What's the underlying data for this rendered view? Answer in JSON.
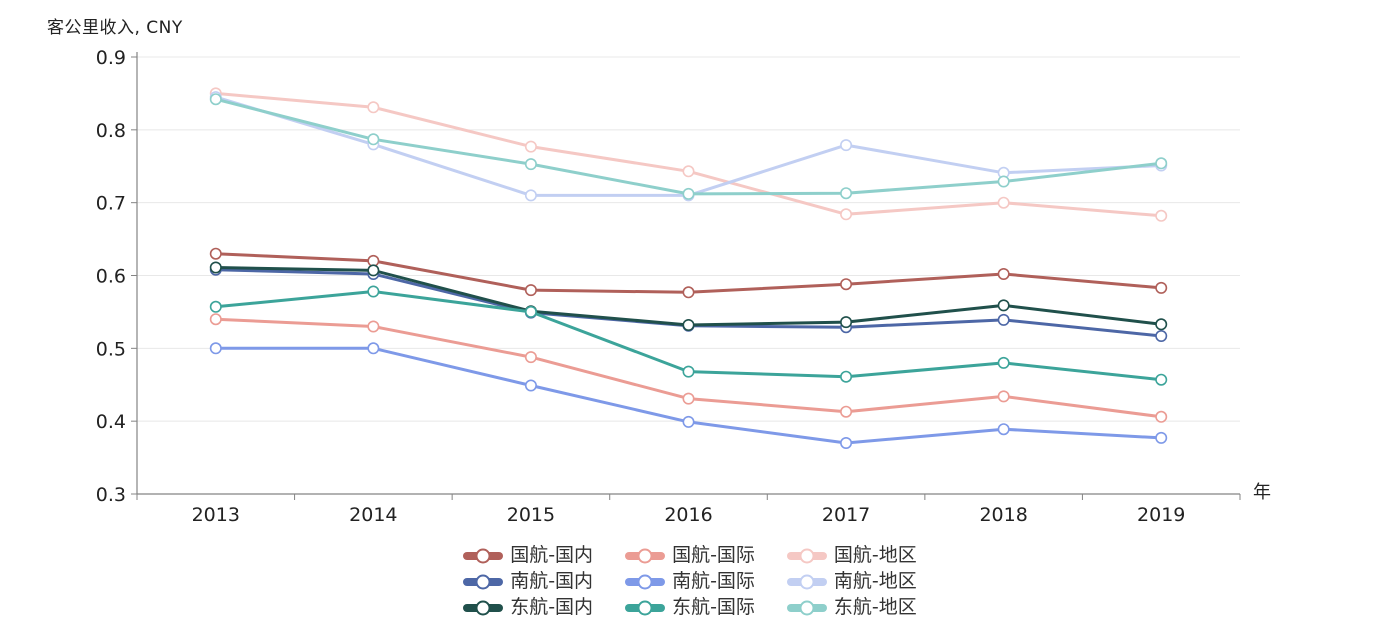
{
  "title": "客公里收入, CNY",
  "chart_data": {
    "type": "line",
    "title": "客公里收入, CNY",
    "xlabel": "年",
    "ylabel": "客公里收入, CNY",
    "categories": [
      "2013",
      "2014",
      "2015",
      "2016",
      "2017",
      "2018",
      "2019"
    ],
    "ylim": [
      0.3,
      0.9
    ],
    "yticks": [
      0.3,
      0.4,
      0.5,
      0.6,
      0.7,
      0.8,
      0.9
    ],
    "grid": "horizontal",
    "legend_position": "bottom",
    "marker": "open-circle",
    "series": [
      {
        "name": "国航-国内",
        "color": "#b0605a",
        "values": [
          0.63,
          0.62,
          0.58,
          0.577,
          0.588,
          0.602,
          0.583
        ]
      },
      {
        "name": "国航-国际",
        "color": "#eb9c94",
        "values": [
          0.54,
          0.53,
          0.488,
          0.431,
          0.413,
          0.434,
          0.406
        ]
      },
      {
        "name": "国航-地区",
        "color": "#f5c8c4",
        "values": [
          0.85,
          0.831,
          0.777,
          0.743,
          0.684,
          0.7,
          0.682
        ]
      },
      {
        "name": "南航-国内",
        "color": "#4d67a6",
        "values": [
          0.608,
          0.602,
          0.549,
          0.531,
          0.529,
          0.539,
          0.517
        ]
      },
      {
        "name": "南航-国际",
        "color": "#7e99e8",
        "values": [
          0.5,
          0.5,
          0.449,
          0.399,
          0.37,
          0.389,
          0.377
        ]
      },
      {
        "name": "南航-地区",
        "color": "#c2cff2",
        "values": [
          0.845,
          0.78,
          0.71,
          0.71,
          0.779,
          0.741,
          0.751
        ]
      },
      {
        "name": "东航-国内",
        "color": "#20504b",
        "values": [
          0.611,
          0.607,
          0.551,
          0.532,
          0.536,
          0.559,
          0.533
        ]
      },
      {
        "name": "东航-国际",
        "color": "#3ca49a",
        "values": [
          0.557,
          0.578,
          0.55,
          0.468,
          0.461,
          0.48,
          0.457
        ]
      },
      {
        "name": "东航-地区",
        "color": "#8ecfcb",
        "values": [
          0.842,
          0.787,
          0.753,
          0.712,
          0.713,
          0.729,
          0.754
        ]
      }
    ],
    "legend_rows": [
      [
        "国航-国内",
        "国航-国际",
        "国航-地区"
      ],
      [
        "南航-国内",
        "南航-国际",
        "南航-地区"
      ],
      [
        "东航-国内",
        "东航-国际",
        "东航-地区"
      ]
    ]
  },
  "colors": {
    "grid": "#e8e8e8",
    "axis": "#848484",
    "tick_text": "#222222",
    "legend_text": "#333333"
  }
}
